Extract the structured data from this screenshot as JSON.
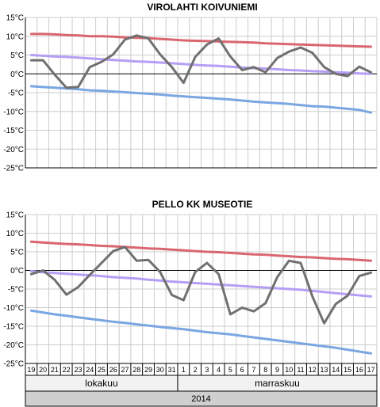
{
  "chart_data": [
    {
      "type": "line",
      "title": "VIROLAHTI KOIVUNIEMI",
      "y_unit": "°C",
      "ylim": [
        -25,
        15
      ],
      "yticks": [
        15,
        10,
        5,
        0,
        -5,
        -10,
        -15,
        -20,
        -25
      ],
      "grid": true,
      "series": [
        {
          "color": "#d9666f",
          "values": [
            10.6,
            10.6,
            10.5,
            10.3,
            10.2,
            10.0,
            10.0,
            9.9,
            9.7,
            9.6,
            9.5,
            9.3,
            9.1,
            8.9,
            8.8,
            8.7,
            8.6,
            8.5,
            8.4,
            8.3,
            8.1,
            8.0,
            7.9,
            7.8,
            7.7,
            7.6,
            7.5,
            7.4,
            7.3,
            7.2
          ]
        },
        {
          "color": "#b59ef5",
          "values": [
            5.0,
            4.8,
            4.6,
            4.5,
            4.3,
            4.1,
            3.9,
            3.7,
            3.5,
            3.3,
            3.2,
            3.0,
            2.8,
            2.6,
            2.4,
            2.2,
            2.1,
            1.9,
            1.7,
            1.5,
            1.4,
            1.2,
            1.0,
            0.9,
            0.7,
            0.6,
            0.4,
            0.3,
            0.1,
            0.0
          ]
        },
        {
          "color": "#7aa6e2",
          "values": [
            -3.3,
            -3.5,
            -3.7,
            -3.9,
            -4.1,
            -4.4,
            -4.5,
            -4.7,
            -4.9,
            -5.1,
            -5.3,
            -5.5,
            -5.8,
            -6.0,
            -6.2,
            -6.4,
            -6.6,
            -6.8,
            -7.1,
            -7.4,
            -7.6,
            -7.8,
            -8.0,
            -8.3,
            -8.6,
            -8.7,
            -9.0,
            -9.3,
            -9.6,
            -10.3
          ]
        },
        {
          "color": "#707070",
          "values": [
            3.6,
            3.6,
            -0.2,
            -3.7,
            -3.5,
            1.8,
            3.2,
            5.2,
            9.1,
            10.2,
            9.4,
            5.2,
            1.8,
            -2.4,
            4.5,
            7.8,
            9.4,
            4.6,
            1.0,
            1.8,
            0.4,
            4.2,
            5.9,
            7.0,
            5.6,
            1.8,
            0.0,
            -0.6,
            1.9,
            0.4
          ]
        }
      ]
    },
    {
      "type": "line",
      "title": "PELLO KK MUSEOTIE",
      "y_unit": "°C",
      "ylim": [
        -25,
        15
      ],
      "yticks": [
        15,
        10,
        5,
        0,
        -5,
        -10,
        -15,
        -20,
        -25
      ],
      "grid": true,
      "series": [
        {
          "color": "#d9666f",
          "values": [
            7.7,
            7.5,
            7.3,
            7.1,
            7.0,
            6.8,
            6.6,
            6.5,
            6.3,
            6.1,
            5.9,
            5.8,
            5.6,
            5.4,
            5.2,
            5.0,
            4.9,
            4.7,
            4.5,
            4.3,
            4.2,
            4.0,
            3.8,
            3.6,
            3.5,
            3.3,
            3.1,
            3.0,
            2.8,
            2.6
          ]
        },
        {
          "color": "#b59ef5",
          "values": [
            -0.2,
            -0.5,
            -0.7,
            -0.9,
            -1.1,
            -1.3,
            -1.5,
            -1.8,
            -2.0,
            -2.2,
            -2.5,
            -2.7,
            -3.0,
            -3.2,
            -3.4,
            -3.6,
            -3.8,
            -4.0,
            -4.2,
            -4.4,
            -4.6,
            -4.8,
            -5.0,
            -5.2,
            -5.5,
            -5.8,
            -6.1,
            -6.4,
            -6.7,
            -7.0
          ]
        },
        {
          "color": "#7aa6e2",
          "values": [
            -10.8,
            -11.3,
            -11.8,
            -12.2,
            -12.6,
            -13.0,
            -13.4,
            -13.8,
            -14.1,
            -14.5,
            -14.8,
            -15.2,
            -15.5,
            -15.8,
            -16.2,
            -16.6,
            -16.9,
            -17.2,
            -17.6,
            -18.0,
            -18.4,
            -18.8,
            -19.2,
            -19.6,
            -20.0,
            -20.4,
            -20.8,
            -21.3,
            -21.8,
            -22.3
          ]
        },
        {
          "color": "#707070",
          "values": [
            -1.0,
            0.0,
            -2.5,
            -6.5,
            -4.5,
            -1.2,
            2.0,
            5.2,
            6.3,
            2.6,
            2.8,
            -0.4,
            -6.6,
            -8.0,
            -0.4,
            2.0,
            -1.0,
            -11.8,
            -10.0,
            -11.0,
            -8.8,
            -1.8,
            2.6,
            2.0,
            -7.0,
            -14.2,
            -9.0,
            -6.8,
            -1.5,
            -0.6
          ]
        }
      ]
    }
  ],
  "x_axis": {
    "days": [
      "19",
      "20",
      "21",
      "22",
      "23",
      "24",
      "25",
      "26",
      "27",
      "28",
      "29",
      "30",
      "31",
      "1",
      "2",
      "3",
      "4",
      "5",
      "6",
      "7",
      "8",
      "9",
      "10",
      "11",
      "12",
      "13",
      "14",
      "15",
      "16",
      "17"
    ],
    "months": [
      {
        "label": "lokakuu",
        "from": 0,
        "to": 12
      },
      {
        "label": "marraskuu",
        "from": 13,
        "to": 29
      }
    ],
    "year": "2014"
  }
}
